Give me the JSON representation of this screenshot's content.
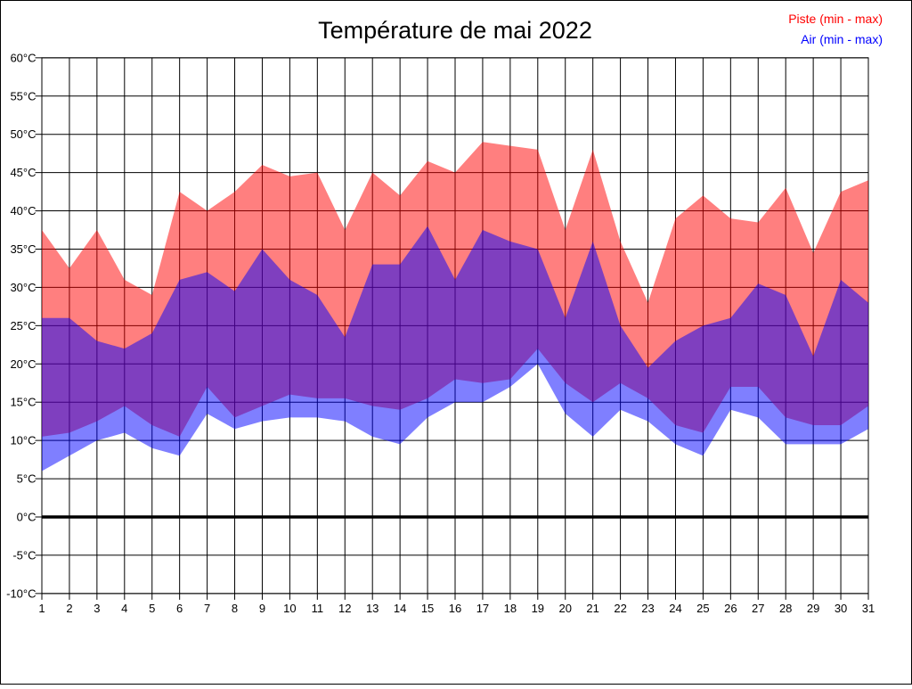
{
  "page": {
    "background_color": "#FFFFFF",
    "border_color": "#000000"
  },
  "legend": {
    "position": "top-right",
    "piste_color": "#FF0000",
    "air_color": "#0000FF"
  },
  "axes": {
    "y_tick_labels": [
      "60°C",
      "55°C",
      "50°C",
      "45°C",
      "40°C",
      "35°C",
      "30°C",
      "25°C",
      "20°C",
      "15°C",
      "10°C",
      "5°C",
      "0°C",
      "-5°C",
      "-10°C"
    ],
    "x_tick_labels": [
      "1",
      "2",
      "3",
      "4",
      "5",
      "6",
      "7",
      "8",
      "9",
      "10",
      "11",
      "12",
      "13",
      "14",
      "15",
      "16",
      "17",
      "18",
      "19",
      "20",
      "21",
      "22",
      "23",
      "24",
      "25",
      "26",
      "27",
      "28",
      "29",
      "30",
      "31"
    ]
  },
  "chart_data": {
    "type": "area",
    "title": "Température de mai 2022",
    "x": [
      1,
      2,
      3,
      4,
      5,
      6,
      7,
      8,
      9,
      10,
      11,
      12,
      13,
      14,
      15,
      16,
      17,
      18,
      19,
      20,
      21,
      22,
      23,
      24,
      25,
      26,
      27,
      28,
      29,
      30,
      31
    ],
    "xlabel": "",
    "ylabel": "",
    "ylim": [
      -10,
      60
    ],
    "ytick_step": 5,
    "grid": true,
    "zero_line_at": 0,
    "legend_position": "top-right",
    "fill_opacity": 0.5,
    "series": [
      {
        "name": "Piste (min - max)",
        "color": "#FF0000",
        "max": [
          37.5,
          32.5,
          37.5,
          31,
          29,
          42.5,
          40,
          42.5,
          46,
          44.5,
          45,
          37.5,
          45,
          42,
          46.5,
          45,
          49,
          48.5,
          48,
          37.5,
          48,
          36,
          28,
          39,
          42,
          39,
          38.5,
          43,
          34.5,
          42.5,
          44
        ],
        "min": [
          10.5,
          11,
          12.5,
          14.5,
          12,
          10.5,
          17,
          13,
          14.5,
          16,
          15.5,
          15.5,
          14.5,
          14,
          15.5,
          18,
          17.5,
          18,
          22,
          17.5,
          15,
          17.5,
          15.5,
          12,
          11,
          17,
          17,
          13,
          12,
          12,
          14.5
        ]
      },
      {
        "name": "Air (min - max)",
        "color": "#0000FF",
        "max": [
          26,
          26,
          23,
          22,
          24,
          31,
          32,
          29.5,
          35,
          31,
          29,
          23.5,
          33,
          33,
          38,
          31,
          37.5,
          36,
          35,
          26,
          36,
          25,
          19.5,
          23,
          25,
          26,
          30.5,
          29,
          21,
          31,
          28
        ],
        "min": [
          6,
          8,
          10,
          11,
          9,
          8,
          13.5,
          11.5,
          12.5,
          13,
          13,
          12.5,
          10.5,
          9.5,
          13,
          15,
          15,
          17,
          20,
          13.5,
          10.5,
          14,
          12.5,
          9.5,
          8,
          14,
          13,
          9.5,
          9.5,
          9.5,
          11.5
        ]
      }
    ]
  }
}
